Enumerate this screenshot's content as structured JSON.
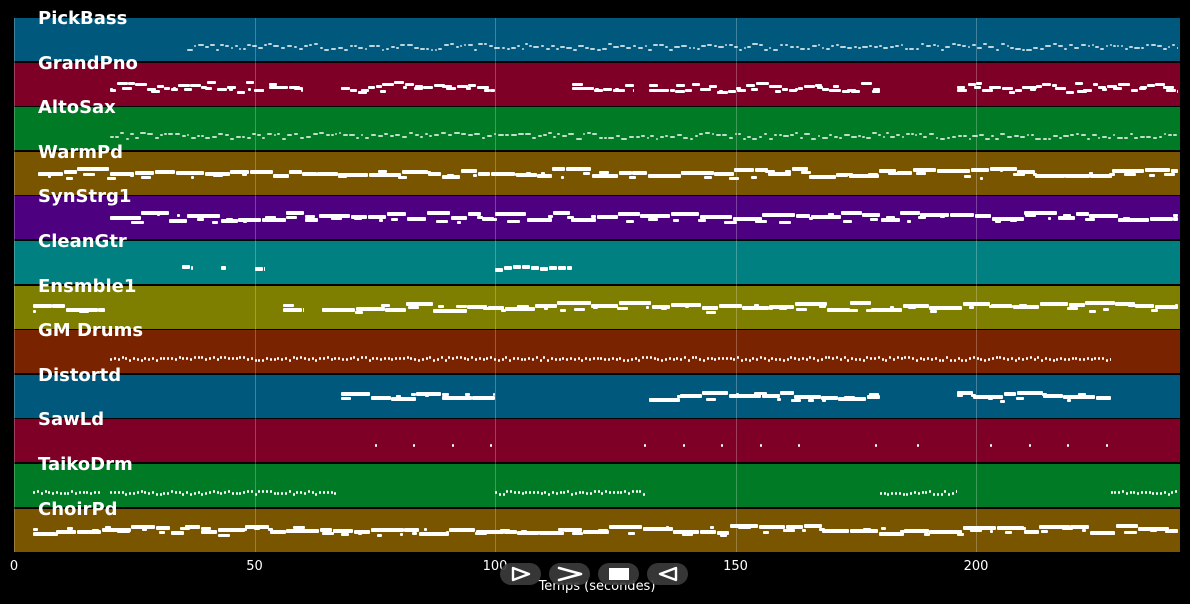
{
  "lanes": [
    {
      "name": "PickBass",
      "color": "#00587c"
    },
    {
      "name": "GrandPno",
      "color": "#7e0027"
    },
    {
      "name": "AltoSax",
      "color": "#007a25"
    },
    {
      "name": "WarmPd",
      "color": "#7a5500"
    },
    {
      "name": "SynStrg1",
      "color": "#4d0080"
    },
    {
      "name": "CleanGtr",
      "color": "#008080"
    },
    {
      "name": "Ensmble1",
      "color": "#7e7e00"
    },
    {
      "name": "GM Drums",
      "color": "#7a2300"
    },
    {
      "name": "Distortd",
      "color": "#00587c"
    },
    {
      "name": "SawLd",
      "color": "#7e0027"
    },
    {
      "name": "TaikoDrm",
      "color": "#007a25"
    },
    {
      "name": "ChoirPd",
      "color": "#7a5500"
    }
  ],
  "axis": {
    "ticks": [
      "0",
      "50",
      "100",
      "150",
      "200"
    ],
    "tick_values": [
      0,
      50,
      100,
      150,
      200
    ],
    "max": 242,
    "title": "Temps (secondes)"
  },
  "controls": [
    {
      "icon": "play-icon"
    },
    {
      "icon": "fast-forward-icon"
    },
    {
      "icon": "stop-icon"
    },
    {
      "icon": "rewind-icon"
    }
  ],
  "notes": [
    {
      "lane": 0,
      "segments": [
        [
          36,
          242
        ]
      ],
      "style": "dense-small"
    },
    {
      "lane": 1,
      "segments": [
        [
          20,
          52
        ],
        [
          53,
          60
        ],
        [
          68,
          100
        ],
        [
          116,
          129
        ],
        [
          132,
          180
        ],
        [
          196,
          242
        ]
      ],
      "style": "chords"
    },
    {
      "lane": 2,
      "segments": [
        [
          20,
          242
        ]
      ],
      "style": "dense-small"
    },
    {
      "lane": 3,
      "segments": [
        [
          5,
          242
        ]
      ],
      "style": "pad"
    },
    {
      "lane": 4,
      "segments": [
        [
          20,
          242
        ]
      ],
      "style": "pad"
    },
    {
      "lane": 5,
      "segments": [
        [
          35,
          37
        ],
        [
          43,
          44
        ],
        [
          50,
          52
        ],
        [
          100,
          116
        ]
      ],
      "style": "blocks"
    },
    {
      "lane": 6,
      "segments": [
        [
          4,
          19
        ],
        [
          56,
          60
        ],
        [
          64,
          242
        ]
      ],
      "style": "pad"
    },
    {
      "lane": 7,
      "segments": [
        [
          20,
          228
        ]
      ],
      "style": "drums"
    },
    {
      "lane": 8,
      "segments": [
        [
          68,
          100
        ],
        [
          132,
          180
        ],
        [
          196,
          228
        ]
      ],
      "style": "pad"
    },
    {
      "lane": 9,
      "segments": [
        [
          75,
          76
        ],
        [
          83,
          84
        ],
        [
          91,
          92
        ],
        [
          99,
          100
        ],
        [
          131,
          132
        ],
        [
          139,
          140
        ],
        [
          147,
          148
        ],
        [
          155,
          156
        ],
        [
          163,
          164
        ],
        [
          179,
          194
        ],
        [
          203,
          204
        ],
        [
          211,
          212
        ],
        [
          219,
          220
        ],
        [
          227,
          228
        ]
      ],
      "style": "sparse"
    },
    {
      "lane": 10,
      "segments": [
        [
          4,
          18
        ],
        [
          20,
          67
        ],
        [
          100,
          131
        ],
        [
          180,
          196
        ],
        [
          228,
          242
        ]
      ],
      "style": "drums"
    },
    {
      "lane": 11,
      "segments": [
        [
          4,
          242
        ]
      ],
      "style": "pad"
    }
  ]
}
